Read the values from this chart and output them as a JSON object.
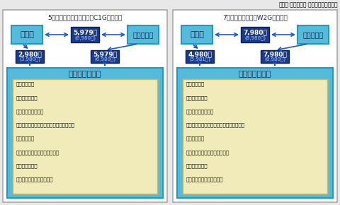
{
  "header_note": "（金額:税込　上段:キャンペーン価格）",
  "panel_left": {
    "title": "5人乗りコンパクトカー（C1Gクラス）",
    "left_box": "羽田店",
    "right_box": "成田空港店",
    "center_price_top_1": "5,979円",
    "center_price_top_2": "(6,980円)",
    "price_left_1": "2,980円",
    "price_left_2": "(3,980円)",
    "price_right_1": "5,979円",
    "price_right_2": "(6,980円)",
    "bottom_title": "東京都内８店舐",
    "stores": [
      "・潮見駅前店",
      "・新小岩駅前店",
      "・中野サンプラザ店",
      "・タイムズステーション有楽町イトシア店",
      "・品川駅前店",
      "・タイムズステーション池袋店",
      "・恵比寿駅前店",
      "・大手町・東京リア化ル店"
    ]
  },
  "panel_right": {
    "title": "7人乗りミニバン（W2Gクラス）",
    "left_box": "羽田店",
    "right_box": "成田空港店",
    "center_price_top_1": "7,980円",
    "center_price_top_2": "(8,980円)",
    "price_left_1": "4,980円",
    "price_left_2": "(5,981円)",
    "price_right_1": "7,980円",
    "price_right_2": "(8,980円)",
    "bottom_title": "東京都内８店舐",
    "stores": [
      "・潮見駅前店",
      "・新小岩駅前店",
      "・中野サンプラザ店",
      "・タイムズステーション有楽町イトシア店",
      "・品川駅前店",
      "・タイムズステーション池袋店",
      "・恵比寿駅前店",
      "・大手町・東京リア化ル店"
    ]
  },
  "colors": {
    "fig_bg": "#e8e8e8",
    "panel_bg": "#ffffff",
    "panel_border": "#aaaaaa",
    "cyan_box": "#55bbdd",
    "cyan_box_border": "#2299bb",
    "dark_blue_box": "#1a3a8a",
    "dark_blue_border": "#0a1f5c",
    "bottom_cyan_bg": "#55bbdd",
    "bottom_cyan_border": "#2299bb",
    "bottom_inner_bg": "#f0ebb8",
    "bottom_inner_border": "#ccbb66",
    "arrow_color": "#2255cc",
    "title_color": "#222244",
    "store_text": "#111111",
    "price_main": "#ffffff",
    "price_sub": "#aaccff"
  }
}
